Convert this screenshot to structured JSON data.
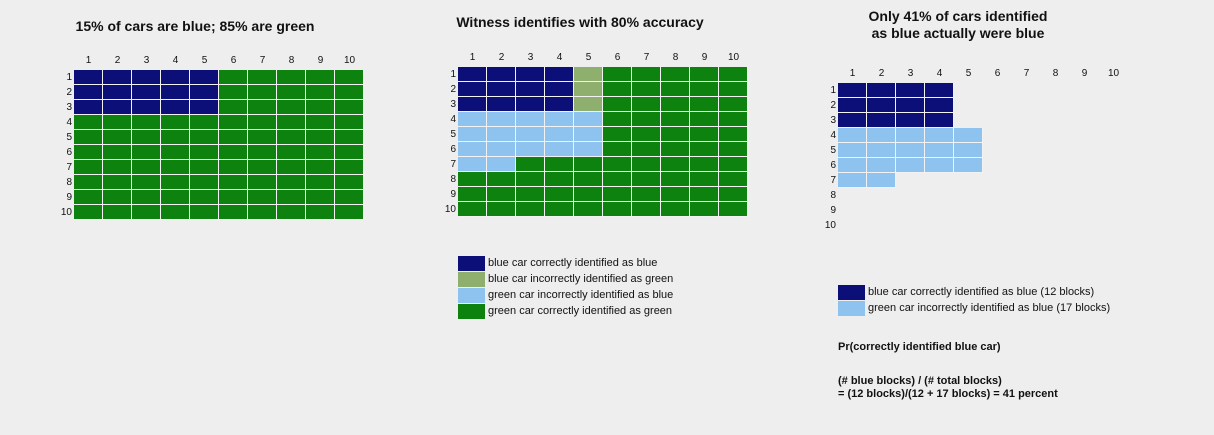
{
  "colors": {
    "blue_correct": "#0c0f78",
    "blue_incorrect": "#8faf6e",
    "green_incorrect": "#8fc3ef",
    "green_correct": "#0d820f",
    "empty": "transparent"
  },
  "col_labels": [
    "1",
    "2",
    "3",
    "4",
    "5",
    "6",
    "7",
    "8",
    "9",
    "10"
  ],
  "row_labels": [
    "1",
    "2",
    "3",
    "4",
    "5",
    "6",
    "7",
    "8",
    "9",
    "10"
  ],
  "panels": [
    {
      "title_lines": [
        "15% of cars are blue; 85% are green"
      ],
      "grid": [
        [
          "B",
          "B",
          "B",
          "B",
          "B",
          "G",
          "G",
          "G",
          "G",
          "G"
        ],
        [
          "B",
          "B",
          "B",
          "B",
          "B",
          "G",
          "G",
          "G",
          "G",
          "G"
        ],
        [
          "B",
          "B",
          "B",
          "B",
          "B",
          "G",
          "G",
          "G",
          "G",
          "G"
        ],
        [
          "G",
          "G",
          "G",
          "G",
          "G",
          "G",
          "G",
          "G",
          "G",
          "G"
        ],
        [
          "G",
          "G",
          "G",
          "G",
          "G",
          "G",
          "G",
          "G",
          "G",
          "G"
        ],
        [
          "G",
          "G",
          "G",
          "G",
          "G",
          "G",
          "G",
          "G",
          "G",
          "G"
        ],
        [
          "G",
          "G",
          "G",
          "G",
          "G",
          "G",
          "G",
          "G",
          "G",
          "G"
        ],
        [
          "G",
          "G",
          "G",
          "G",
          "G",
          "G",
          "G",
          "G",
          "G",
          "G"
        ],
        [
          "G",
          "G",
          "G",
          "G",
          "G",
          "G",
          "G",
          "G",
          "G",
          "G"
        ],
        [
          "G",
          "G",
          "G",
          "G",
          "G",
          "G",
          "G",
          "G",
          "G",
          "G"
        ]
      ],
      "legend": []
    },
    {
      "title_lines": [
        "Witness identifies with 80% accuracy"
      ],
      "grid": [
        [
          "B",
          "B",
          "B",
          "B",
          "b",
          "G",
          "G",
          "G",
          "G",
          "G"
        ],
        [
          "B",
          "B",
          "B",
          "B",
          "b",
          "G",
          "G",
          "G",
          "G",
          "G"
        ],
        [
          "B",
          "B",
          "B",
          "B",
          "b",
          "G",
          "G",
          "G",
          "G",
          "G"
        ],
        [
          "g",
          "g",
          "g",
          "g",
          "g",
          "G",
          "G",
          "G",
          "G",
          "G"
        ],
        [
          "g",
          "g",
          "g",
          "g",
          "g",
          "G",
          "G",
          "G",
          "G",
          "G"
        ],
        [
          "g",
          "g",
          "g",
          "g",
          "g",
          "G",
          "G",
          "G",
          "G",
          "G"
        ],
        [
          "g",
          "g",
          "G",
          "G",
          "G",
          "G",
          "G",
          "G",
          "G",
          "G"
        ],
        [
          "G",
          "G",
          "G",
          "G",
          "G",
          "G",
          "G",
          "G",
          "G",
          "G"
        ],
        [
          "G",
          "G",
          "G",
          "G",
          "G",
          "G",
          "G",
          "G",
          "G",
          "G"
        ],
        [
          "G",
          "G",
          "G",
          "G",
          "G",
          "G",
          "G",
          "G",
          "G",
          "G"
        ]
      ],
      "legend": [
        {
          "key": "B",
          "label": "blue car correctly identified as blue"
        },
        {
          "key": "b",
          "label": "blue car incorrectly identified as green"
        },
        {
          "key": "g",
          "label": "green car incorrectly identified as blue"
        },
        {
          "key": "G",
          "label": "green car correctly identified as green"
        }
      ]
    },
    {
      "title_lines": [
        "Only 41% of cars identified",
        "as blue actually were blue"
      ],
      "grid": [
        [
          "B",
          "B",
          "B",
          "B",
          ".",
          ".",
          ".",
          ".",
          ".",
          "."
        ],
        [
          "B",
          "B",
          "B",
          "B",
          ".",
          ".",
          ".",
          ".",
          ".",
          "."
        ],
        [
          "B",
          "B",
          "B",
          "B",
          ".",
          ".",
          ".",
          ".",
          ".",
          "."
        ],
        [
          "g",
          "g",
          "g",
          "g",
          "g",
          ".",
          ".",
          ".",
          ".",
          "."
        ],
        [
          "g",
          "g",
          "g",
          "g",
          "g",
          ".",
          ".",
          ".",
          ".",
          "."
        ],
        [
          "g",
          "g",
          "g",
          "g",
          "g",
          ".",
          ".",
          ".",
          ".",
          "."
        ],
        [
          "g",
          "g",
          ".",
          ".",
          ".",
          ".",
          ".",
          ".",
          ".",
          "."
        ],
        [
          ".",
          ".",
          ".",
          ".",
          ".",
          ".",
          ".",
          ".",
          ".",
          "."
        ],
        [
          ".",
          ".",
          ".",
          ".",
          ".",
          ".",
          ".",
          ".",
          ".",
          "."
        ],
        [
          ".",
          ".",
          ".",
          ".",
          ".",
          ".",
          ".",
          ".",
          ".",
          "."
        ]
      ],
      "legend": [
        {
          "key": "B",
          "label": "blue car correctly identified as blue (12 blocks)"
        },
        {
          "key": "g",
          "label": "green car incorrectly identified as blue (17 blocks)"
        }
      ]
    }
  ],
  "formula": {
    "heading": "Pr(correctly identified blue car)",
    "line1": "(# blue blocks) / (# total blocks)",
    "line2": "= (12 blocks)/(12 + 17 blocks) = 41 percent"
  }
}
